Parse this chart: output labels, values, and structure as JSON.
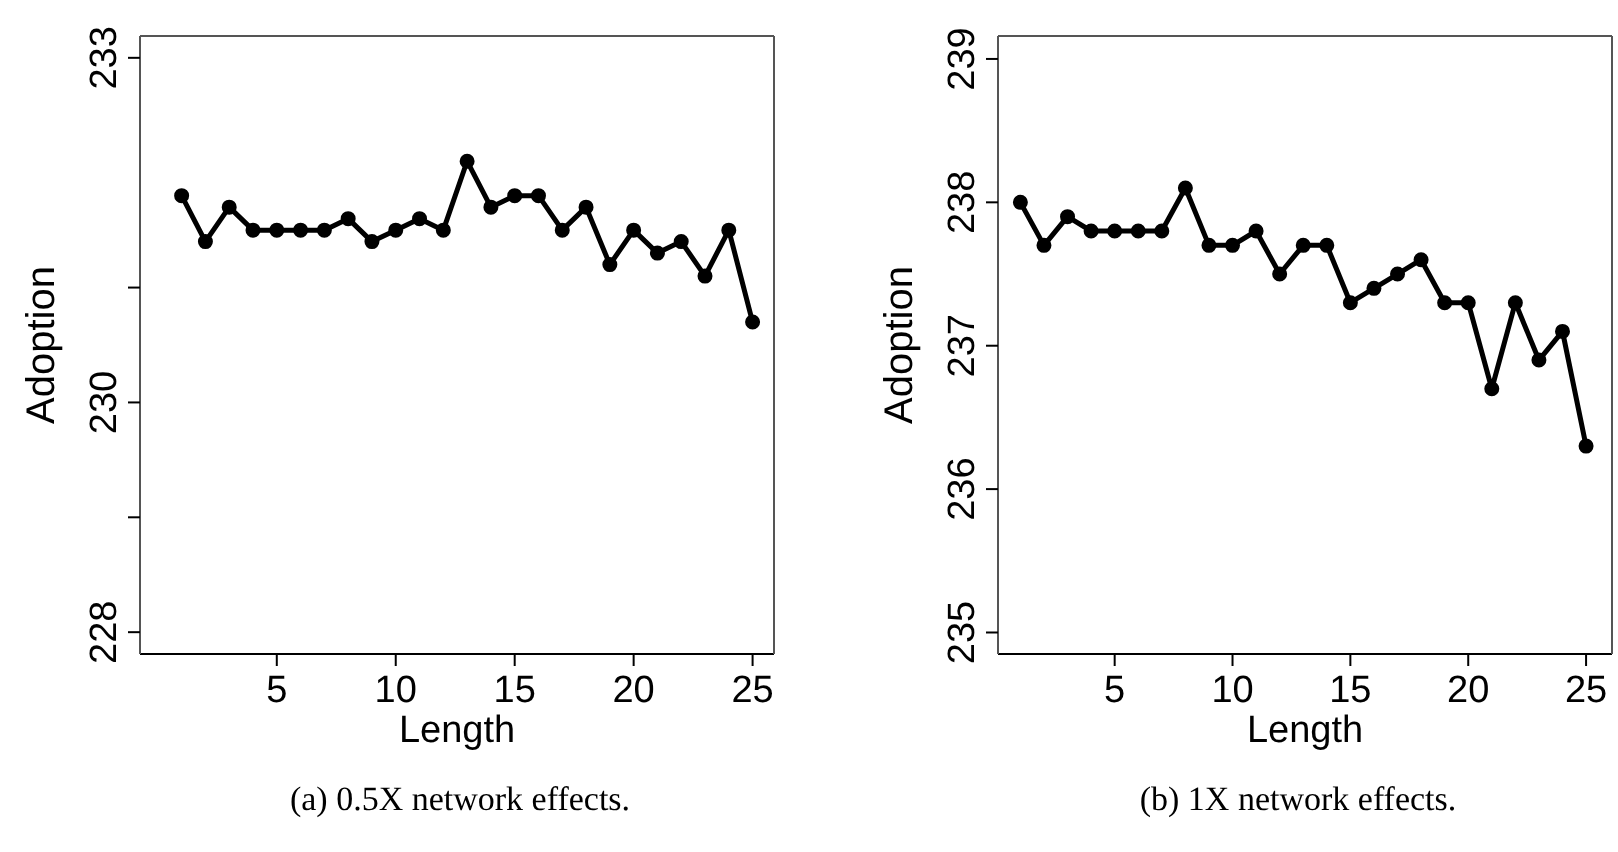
{
  "chart_data": [
    {
      "type": "line",
      "xlabel": "Length",
      "ylabel": "Adoption",
      "annotations": [
        "(a) 0.5X network effects."
      ],
      "marker": "circle",
      "line_style": "solid",
      "x": [
        1,
        2,
        3,
        4,
        5,
        6,
        7,
        8,
        9,
        10,
        11,
        12,
        13,
        14,
        15,
        16,
        17,
        18,
        19,
        20,
        21,
        22,
        23,
        24,
        25
      ],
      "series": [
        {
          "color": "#000000",
          "values": [
            231.8,
            231.4,
            231.7,
            231.5,
            231.5,
            231.5,
            231.5,
            231.6,
            231.4,
            231.5,
            231.6,
            231.5,
            232.1,
            231.7,
            231.8,
            231.8,
            231.5,
            231.7,
            231.2,
            231.5,
            231.3,
            231.4,
            231.1,
            231.5,
            230.7
          ]
        }
      ],
      "xlim": [
        -0.75,
        25.9
      ],
      "xticks": [
        5,
        10,
        15,
        20,
        25
      ],
      "ylim": [
        227.81,
        233.19
      ],
      "yticks": [
        228,
        {
          "value": 229,
          "label": null
        },
        230,
        {
          "value": 231,
          "label": null
        },
        233
      ]
    },
    {
      "type": "line",
      "xlabel": "Length",
      "ylabel": "Adoption",
      "annotations": [
        "(b) 1X network effects."
      ],
      "marker": "circle",
      "line_style": "solid",
      "x": [
        1,
        2,
        3,
        4,
        5,
        6,
        7,
        8,
        9,
        10,
        11,
        12,
        13,
        14,
        15,
        16,
        17,
        18,
        19,
        20,
        21,
        22,
        23,
        24,
        25
      ],
      "series": [
        {
          "color": "#000000",
          "values": [
            238.0,
            237.7,
            237.9,
            237.8,
            237.8,
            237.8,
            237.8,
            238.1,
            237.7,
            237.7,
            237.8,
            237.5,
            237.7,
            237.7,
            237.3,
            237.4,
            237.5,
            237.6,
            237.3,
            237.3,
            236.7,
            237.3,
            236.9,
            237.1,
            236.3
          ]
        }
      ],
      "xlim": [
        0.05,
        26.1
      ],
      "xticks": [
        5,
        10,
        15,
        20,
        25
      ],
      "ylim": [
        234.85,
        239.16
      ],
      "yticks": [
        235,
        236,
        237,
        238,
        239
      ]
    }
  ]
}
